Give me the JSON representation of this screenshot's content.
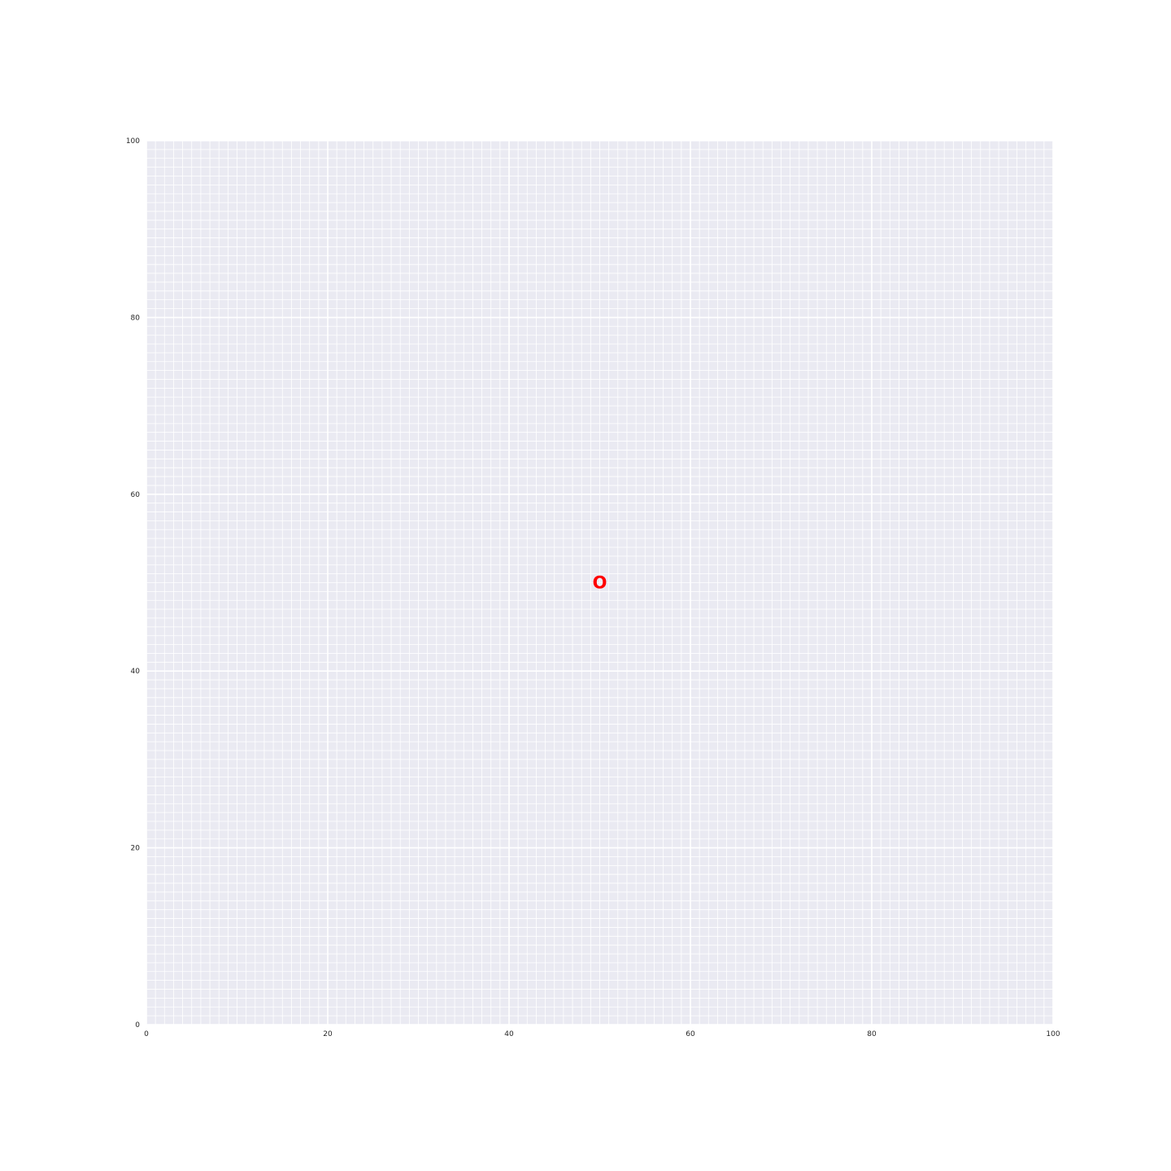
{
  "chart_data": {
    "type": "scatter",
    "title": "",
    "xlabel": "",
    "ylabel": "",
    "xlim": [
      0,
      100
    ],
    "ylim": [
      0,
      100
    ],
    "grid": true,
    "minor_grid_step": 1,
    "major_grid_step": 20,
    "xticks": [
      0,
      20,
      40,
      60,
      80,
      100
    ],
    "yticks": [
      0,
      20,
      40,
      60,
      80,
      100
    ],
    "xtick_labels": [
      "0",
      "20",
      "40",
      "60",
      "80",
      "100"
    ],
    "ytick_labels": [
      "0",
      "20",
      "40",
      "60",
      "80",
      "100"
    ],
    "points": [
      {
        "x": 50,
        "y": 50,
        "label": "O",
        "color": "#ff0000"
      }
    ],
    "colors": {
      "plot_background": "#eaeaf2",
      "grid": "#ffffff",
      "tick_text": "#262626"
    }
  }
}
